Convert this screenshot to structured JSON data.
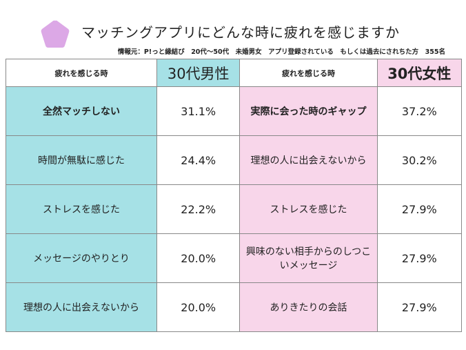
{
  "header": {
    "title": "マッチングアプリにどんな時に疲れを感じますか",
    "source": "情報元：P!っと縁結び　20代〜50代　未婚男女　アプリ登録されている　もしくは過去にされちた方　355名",
    "icon": "pentagon-icon",
    "icon_color": "#dca8e6"
  },
  "table": {
    "col_reason": "疲れを感じる時",
    "male_header": "30代男性",
    "female_header": "30代女性",
    "colors": {
      "male": "#a6e1e6",
      "female": "#f8d6ea"
    },
    "rows": [
      {
        "male_reason": "全然マッチしない",
        "male_pct": "31.1%",
        "female_reason": "実際に会った時のギャップ",
        "female_pct": "37.2%"
      },
      {
        "male_reason": "時間が無駄に感じた",
        "male_pct": "24.4%",
        "female_reason": "理想の人に出会えないから",
        "female_pct": "30.2%"
      },
      {
        "male_reason": "ストレスを感じた",
        "male_pct": "22.2%",
        "female_reason": "ストレスを感じた",
        "female_pct": "27.9%"
      },
      {
        "male_reason": "メッセージのやりとり",
        "male_pct": "20.0%",
        "female_reason": "興味のない相手からのしつこいメッセージ",
        "female_pct": "27.9%"
      },
      {
        "male_reason": "理想の人に出会えないから",
        "male_pct": "20.0%",
        "female_reason": "ありきたりの会話",
        "female_pct": "27.9%"
      }
    ]
  }
}
